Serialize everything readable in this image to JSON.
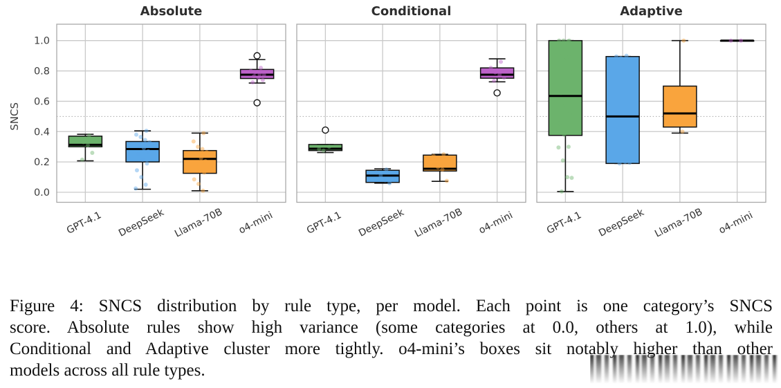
{
  "figure": {
    "ylabel": "SNCS",
    "yticks": [
      0.0,
      0.2,
      0.4,
      0.6,
      0.8,
      1.0
    ],
    "ytick_labels": [
      "0.0",
      "0.2",
      "0.4",
      "0.6",
      "0.8",
      "1.0"
    ],
    "threshold": 0.5,
    "categories": [
      "GPT-4.1",
      "DeepSeek",
      "Llama-70B",
      "o4-mini"
    ],
    "palette": {
      "GPT-4.1": "#6cb36c",
      "DeepSeek": "#5aa7e8",
      "Llama-70B": "#f9a43d",
      "o4-mini": "#bd62c9"
    },
    "grid_color": "#c9c9c9",
    "spine_color": "#a9a9a9",
    "title_color": "#2e2e2e",
    "tick_color": "#3d3d3d"
  },
  "chart_data": [
    {
      "type": "box",
      "title": "Absolute",
      "ylabel": "SNCS",
      "ylim": [
        -0.06,
        1.1
      ],
      "categories": [
        "GPT-4.1",
        "DeepSeek",
        "Llama-70B",
        "o4-mini"
      ],
      "threshold_line": 0.5,
      "series": [
        {
          "name": "GPT-4.1",
          "color": "#6cb36c",
          "q1": 0.3,
          "median": 0.313,
          "q3": 0.37,
          "whisker_low": 0.207,
          "whisker_high": 0.382,
          "outliers": [],
          "points": [
            0.375,
            0.345,
            0.33,
            0.31,
            0.26,
            0.215
          ]
        },
        {
          "name": "DeepSeek",
          "color": "#5aa7e8",
          "q1": 0.2,
          "median": 0.285,
          "q3": 0.335,
          "whisker_low": 0.02,
          "whisker_high": 0.405,
          "outliers": [],
          "points": [
            0.405,
            0.38,
            0.365,
            0.345,
            0.33,
            0.305,
            0.29,
            0.27,
            0.25,
            0.215,
            0.19,
            0.145,
            0.1,
            0.05,
            0.025
          ]
        },
        {
          "name": "Llama-70B",
          "color": "#f9a43d",
          "q1": 0.125,
          "median": 0.22,
          "q3": 0.275,
          "whisker_low": 0.01,
          "whisker_high": 0.39,
          "outliers": [],
          "points": [
            0.39,
            0.335,
            0.3,
            0.285,
            0.265,
            0.245,
            0.225,
            0.205,
            0.18,
            0.155,
            0.13,
            0.085,
            0.055,
            0.01
          ]
        },
        {
          "name": "o4-mini",
          "color": "#bd62c9",
          "q1": 0.75,
          "median": 0.775,
          "q3": 0.81,
          "whisker_low": 0.72,
          "whisker_high": 0.875,
          "outliers": [
            0.9,
            0.59
          ],
          "points": [
            0.82,
            0.8,
            0.79,
            0.78,
            0.775,
            0.765,
            0.755,
            0.74,
            0.725
          ]
        }
      ]
    },
    {
      "type": "box",
      "title": "Conditional",
      "ylabel": "SNCS",
      "ylim": [
        -0.06,
        1.1
      ],
      "categories": [
        "GPT-4.1",
        "DeepSeek",
        "Llama-70B",
        "o4-mini"
      ],
      "threshold_line": 0.5,
      "series": [
        {
          "name": "GPT-4.1",
          "color": "#6cb36c",
          "q1": 0.275,
          "median": 0.287,
          "q3": 0.315,
          "whisker_low": 0.262,
          "whisker_high": 0.315,
          "outliers": [
            0.41
          ],
          "points": [
            0.3,
            0.285,
            0.275
          ]
        },
        {
          "name": "DeepSeek",
          "color": "#5aa7e8",
          "q1": 0.065,
          "median": 0.11,
          "q3": 0.145,
          "whisker_low": 0.06,
          "whisker_high": 0.155,
          "outliers": [],
          "points": [
            0.15,
            0.13,
            0.11,
            0.08,
            0.06
          ]
        },
        {
          "name": "Llama-70B",
          "color": "#f9a43d",
          "q1": 0.14,
          "median": 0.155,
          "q3": 0.245,
          "whisker_low": 0.072,
          "whisker_high": 0.25,
          "outliers": [],
          "points": [
            0.25,
            0.24,
            0.165,
            0.15,
            0.075
          ]
        },
        {
          "name": "o4-mini",
          "color": "#bd62c9",
          "q1": 0.752,
          "median": 0.775,
          "q3": 0.82,
          "whisker_low": 0.728,
          "whisker_high": 0.88,
          "outliers": [
            0.655
          ],
          "points": [
            0.86,
            0.82,
            0.79,
            0.775,
            0.755,
            0.735
          ]
        }
      ]
    },
    {
      "type": "box",
      "title": "Adaptive",
      "ylabel": "SNCS",
      "ylim": [
        -0.06,
        1.1
      ],
      "categories": [
        "GPT-4.1",
        "DeepSeek",
        "Llama-70B",
        "o4-mini"
      ],
      "threshold_line": 0.5,
      "series": [
        {
          "name": "GPT-4.1",
          "color": "#6cb36c",
          "q1": 0.375,
          "median": 0.635,
          "q3": 1.0,
          "whisker_low": 0.005,
          "whisker_high": 1.0,
          "outliers": [],
          "points": [
            1.0,
            1.0,
            1.0,
            0.995,
            0.905,
            0.9,
            0.89,
            0.79,
            0.655,
            0.575,
            0.52,
            0.455,
            0.38,
            0.3,
            0.295,
            0.21,
            0.1,
            0.095,
            0.005
          ]
        },
        {
          "name": "DeepSeek",
          "color": "#5aa7e8",
          "q1": 0.19,
          "median": 0.5,
          "q3": 0.895,
          "whisker_low": 0.19,
          "whisker_high": 0.895,
          "outliers": [],
          "points": [
            0.9,
            0.895,
            0.885,
            0.2,
            0.195,
            0.19
          ]
        },
        {
          "name": "Llama-70B",
          "color": "#f9a43d",
          "q1": 0.43,
          "median": 0.52,
          "q3": 0.7,
          "whisker_low": 0.39,
          "whisker_high": 1.0,
          "outliers": [],
          "points": [
            1.0,
            0.55,
            0.47,
            0.4
          ]
        },
        {
          "name": "o4-mini",
          "color": "#bd62c9",
          "q1": 1.0,
          "median": 1.0,
          "q3": 1.0,
          "whisker_low": 1.0,
          "whisker_high": 1.0,
          "outliers": [],
          "points": [
            1.0,
            1.0
          ]
        }
      ]
    }
  ],
  "caption": {
    "lines": [
      "Figure 4: SNCS distribution by rule type, per model. Each point is one category’s SNCS",
      "score. Absolute rules show high variance (some categories at 0.0, others at 1.0), while",
      "Conditional and Adaptive cluster more tightly. o4-mini’s boxes sit notably higher than other",
      "models across all rule types."
    ],
    "text": "Figure 4: SNCS distribution by rule type, per model. Each point is one category’s SNCS score. Absolute rules show high variance (some categories at 0.0, others at 1.0), while Conditional and Adaptive cluster more tightly. o4-mini’s boxes sit notably higher than other models across all rule types."
  }
}
